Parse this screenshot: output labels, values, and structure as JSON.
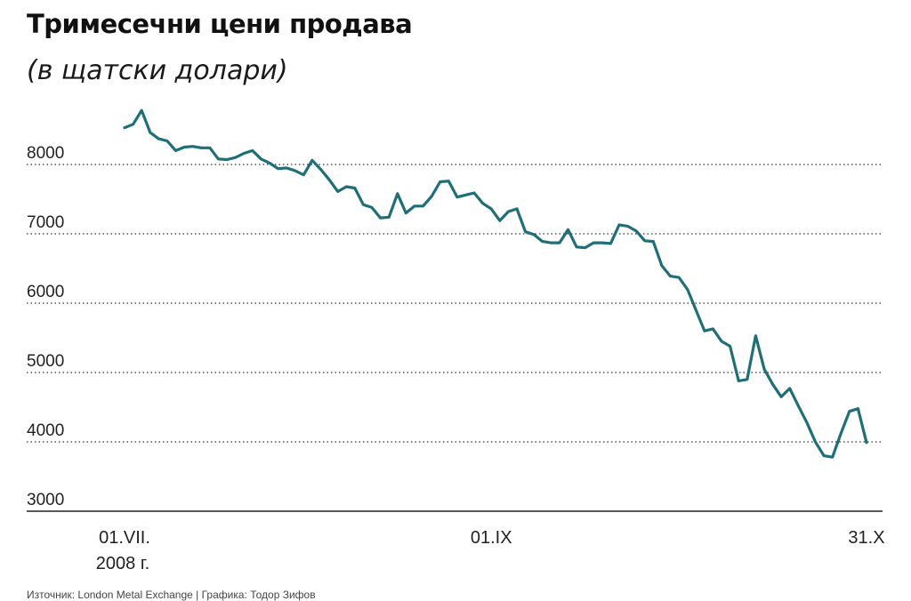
{
  "chart_data": {
    "type": "line",
    "title": "Тримесечни цени продава",
    "subtitle": "(в щатски долари)",
    "xlabel": "",
    "ylabel": "",
    "ylim": [
      3000,
      8800
    ],
    "yticks": [
      3000,
      4000,
      5000,
      6000,
      7000,
      8000
    ],
    "x_tick_labels": [
      {
        "label": "01.VII.",
        "sublabel": "2008 г.",
        "index": 0
      },
      {
        "label": "01.IX",
        "sublabel": "",
        "index": 43
      },
      {
        "label": "31.X",
        "sublabel": "",
        "index": 87
      }
    ],
    "grid": "horizontal-dotted",
    "line_color": "#1f6e78",
    "series": [
      {
        "values": [
          8530,
          8580,
          8780,
          8460,
          8370,
          8340,
          8200,
          8250,
          8260,
          8240,
          8240,
          8080,
          8070,
          8100,
          8160,
          8200,
          8080,
          8020,
          7940,
          7950,
          7910,
          7850,
          8060,
          7930,
          7780,
          7610,
          7680,
          7660,
          7420,
          7380,
          7230,
          7240,
          7580,
          7300,
          7400,
          7400,
          7540,
          7750,
          7760,
          7530,
          7560,
          7590,
          7440,
          7360,
          7190,
          7320,
          7360,
          7030,
          6990,
          6890,
          6870,
          6870,
          7060,
          6810,
          6800,
          6870,
          6870,
          6860,
          7130,
          7110,
          7040,
          6900,
          6890,
          6540,
          6390,
          6370,
          6200,
          5900,
          5600,
          5630,
          5450,
          5380,
          4880,
          4900,
          5530,
          5050,
          4830,
          4650,
          4770,
          4520,
          4280,
          4000,
          3800,
          3780,
          4120,
          4440,
          4480,
          3990
        ]
      }
    ]
  },
  "source_text": "Източник: London Metal Exchange | Графика: Тодор Зифов"
}
